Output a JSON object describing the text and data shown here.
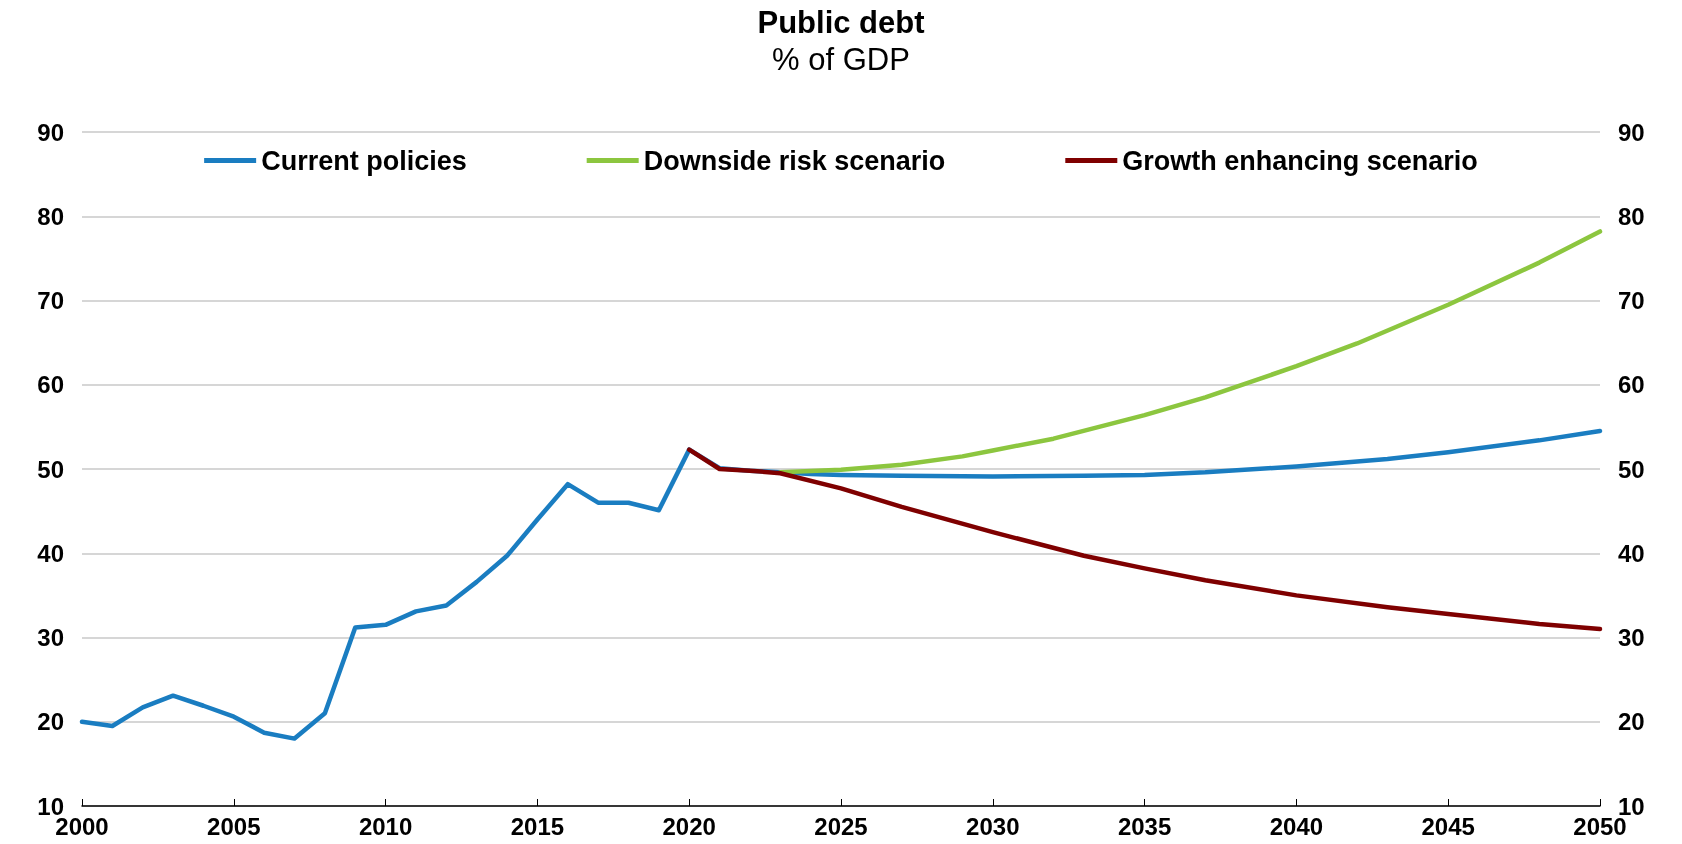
{
  "chart_data": {
    "type": "line",
    "title": "Public debt",
    "subtitle": "% of GDP",
    "series": [
      {
        "name": "Current policies",
        "color": "#1a7dc1",
        "x": [
          2000,
          2001,
          2002,
          2003,
          2004,
          2005,
          2006,
          2007,
          2008,
          2009,
          2010,
          2011,
          2012,
          2013,
          2014,
          2015,
          2016,
          2017,
          2018,
          2019,
          2020,
          2021,
          2022,
          2023,
          2024,
          2025,
          2027,
          2030,
          2033,
          2035,
          2037,
          2040,
          2043,
          2045,
          2048,
          2050
        ],
        "values": [
          20,
          19.5,
          21.7,
          23.1,
          21.9,
          20.6,
          18.7,
          18,
          21,
          31.2,
          31.5,
          33.1,
          33.8,
          36.6,
          39.7,
          44,
          48.2,
          46,
          46,
          45.1,
          52.3,
          50.1,
          49.8,
          49.6,
          49.4,
          49.3,
          49.2,
          49.1,
          49.2,
          49.3,
          49.6,
          50.3,
          51.2,
          52,
          53.4,
          54.5
        ]
      },
      {
        "name": "Downside risk scenario",
        "color": "#8cc63f",
        "x": [
          2023,
          2025,
          2027,
          2029,
          2030,
          2032,
          2035,
          2037,
          2040,
          2042,
          2045,
          2048,
          2050
        ],
        "values": [
          49.6,
          49.9,
          50.5,
          51.5,
          52.2,
          53.6,
          56.4,
          58.5,
          62.2,
          64.9,
          69.5,
          74.5,
          78.2
        ]
      },
      {
        "name": "Growth enhancing scenario",
        "color": "#7f0000",
        "x": [
          2020,
          2021,
          2022,
          2023,
          2025,
          2027,
          2030,
          2033,
          2035,
          2037,
          2040,
          2043,
          2045,
          2048,
          2050
        ],
        "values": [
          52.3,
          50,
          49.8,
          49.5,
          47.7,
          45.5,
          42.5,
          39.7,
          38.2,
          36.8,
          35,
          33.6,
          32.8,
          31.6,
          31
        ]
      }
    ],
    "xlim": [
      2000,
      2050
    ],
    "xticks": [
      2000,
      2005,
      2010,
      2015,
      2020,
      2025,
      2030,
      2035,
      2040,
      2045,
      2050
    ],
    "ylim": [
      10,
      90
    ],
    "yticks": [
      10,
      20,
      30,
      40,
      50,
      60,
      70,
      80,
      90
    ],
    "y2lim": [
      10,
      90
    ],
    "y2ticks": [
      10,
      20,
      30,
      40,
      50,
      60,
      70,
      80,
      90
    ],
    "grid": "y",
    "legend": "top",
    "marker": "none",
    "line_style": "solid"
  }
}
